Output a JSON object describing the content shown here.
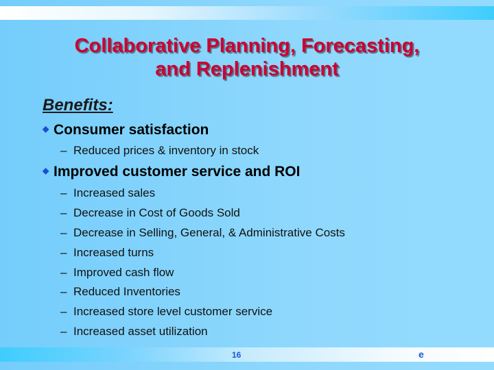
{
  "title_line1": "Collaborative Planning, Forecasting,",
  "title_line2": "and Replenishment",
  "heading": "Benefits:",
  "bullets": [
    {
      "text": "Consumer satisfaction",
      "subs": [
        "Reduced prices & inventory in stock"
      ]
    },
    {
      "text": "Improved customer service and ROI",
      "subs": [
        "Increased sales",
        "Decrease in Cost of Goods Sold",
        "Decrease in Selling, General, & Administrative Costs",
        "Increased turns",
        "Improved cash flow",
        "Reduced Inventories",
        "Increased store level customer service",
        "Increased asset utilization"
      ]
    }
  ],
  "page_number": "16",
  "footer_logo": "e",
  "colors": {
    "title": "#cc0033",
    "bullet": "#1a4fd0",
    "background": "#92dbfe"
  }
}
